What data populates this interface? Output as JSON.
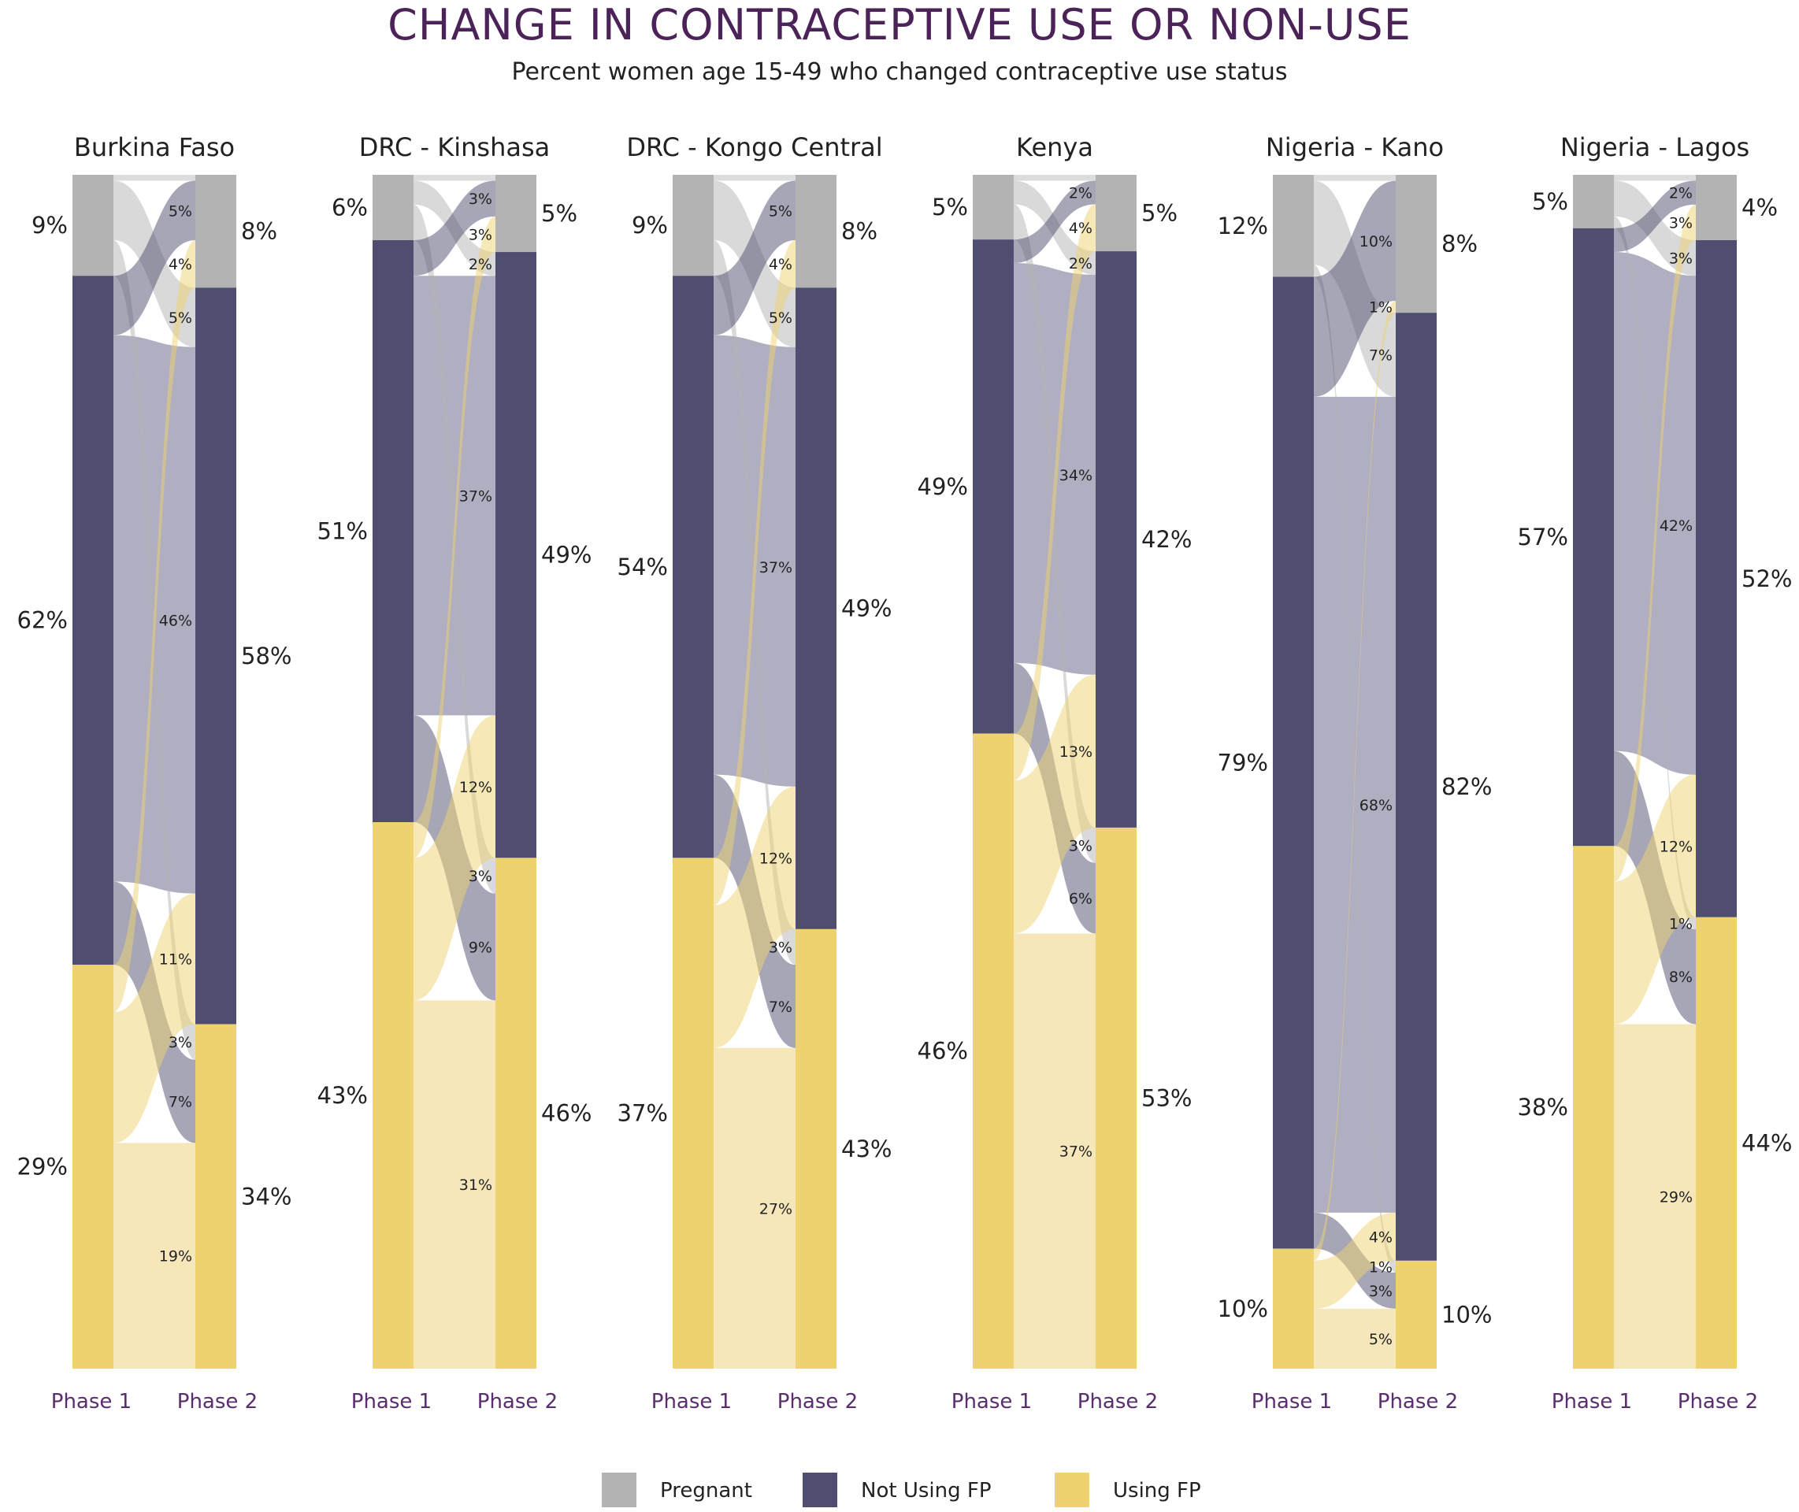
{
  "title": "CHANGE IN CONTRACEPTIVE USE OR NON-USE",
  "subtitle": "Percent women age 15-49 who changed contraceptive use status",
  "colors": {
    "pregnant": "#b3b3b3",
    "not_using": "#4f4e70",
    "using": "#edd26f"
  },
  "legend": [
    {
      "key": "pregnant",
      "label": "Pregnant"
    },
    {
      "key": "not_using",
      "label": "Not Using FP"
    },
    {
      "key": "using",
      "label": "Using FP"
    }
  ],
  "axis_labels": [
    "Phase 1",
    "Phase 2"
  ],
  "chart_data": {
    "type": "alluvial",
    "categories": [
      "Pregnant",
      "Not Using FP",
      "Using FP"
    ],
    "panels": [
      {
        "name": "Burkina Faso",
        "phase1": {
          "pregnant": "9%",
          "not_using": "62%",
          "using": "29%"
        },
        "phase2": {
          "pregnant": "8%",
          "not_using": "58%",
          "using": "34%"
        },
        "flows": [
          {
            "from": "pregnant",
            "to": "pregnant",
            "value": 0.5,
            "label": ""
          },
          {
            "from": "pregnant",
            "to": "not_using",
            "value": 5,
            "label": "5%"
          },
          {
            "from": "pregnant",
            "to": "using",
            "value": 3,
            "label": "3%"
          },
          {
            "from": "not_using",
            "to": "pregnant",
            "value": 5,
            "label": "5%"
          },
          {
            "from": "not_using",
            "to": "not_using",
            "value": 46,
            "label": "46%"
          },
          {
            "from": "not_using",
            "to": "using",
            "value": 7,
            "label": "7%"
          },
          {
            "from": "using",
            "to": "pregnant",
            "value": 4,
            "label": "4%"
          },
          {
            "from": "using",
            "to": "not_using",
            "value": 11,
            "label": "11%"
          },
          {
            "from": "using",
            "to": "using",
            "value": 19,
            "label": "19%"
          }
        ]
      },
      {
        "name": "DRC - Kinshasa",
        "phase1": {
          "pregnant": "6%",
          "not_using": "51%",
          "using": "43%"
        },
        "phase2": {
          "pregnant": "5%",
          "not_using": "49%",
          "using": "46%"
        },
        "flows": [
          {
            "from": "pregnant",
            "to": "pregnant",
            "value": 0.5,
            "label": ""
          },
          {
            "from": "pregnant",
            "to": "not_using",
            "value": 2,
            "label": "2%"
          },
          {
            "from": "pregnant",
            "to": "using",
            "value": 3,
            "label": "3%"
          },
          {
            "from": "not_using",
            "to": "pregnant",
            "value": 3,
            "label": "3%"
          },
          {
            "from": "not_using",
            "to": "not_using",
            "value": 37,
            "label": "37%"
          },
          {
            "from": "not_using",
            "to": "using",
            "value": 9,
            "label": "9%"
          },
          {
            "from": "using",
            "to": "pregnant",
            "value": 3,
            "label": "3%"
          },
          {
            "from": "using",
            "to": "not_using",
            "value": 12,
            "label": "12%"
          },
          {
            "from": "using",
            "to": "using",
            "value": 31,
            "label": "31%"
          }
        ]
      },
      {
        "name": "DRC - Kongo Central",
        "phase1": {
          "pregnant": "9%",
          "not_using": "54%",
          "using": "37%"
        },
        "phase2": {
          "pregnant": "8%",
          "not_using": "49%",
          "using": "43%"
        },
        "flows": [
          {
            "from": "pregnant",
            "to": "pregnant",
            "value": 0.5,
            "label": ""
          },
          {
            "from": "pregnant",
            "to": "not_using",
            "value": 5,
            "label": "5%"
          },
          {
            "from": "pregnant",
            "to": "using",
            "value": 3,
            "label": "3%"
          },
          {
            "from": "not_using",
            "to": "pregnant",
            "value": 5,
            "label": "5%"
          },
          {
            "from": "not_using",
            "to": "not_using",
            "value": 37,
            "label": "37%"
          },
          {
            "from": "not_using",
            "to": "using",
            "value": 7,
            "label": "7%"
          },
          {
            "from": "using",
            "to": "pregnant",
            "value": 4,
            "label": "4%"
          },
          {
            "from": "using",
            "to": "not_using",
            "value": 12,
            "label": "12%"
          },
          {
            "from": "using",
            "to": "using",
            "value": 27,
            "label": "27%"
          }
        ]
      },
      {
        "name": "Kenya",
        "phase1": {
          "pregnant": "5%",
          "not_using": "49%",
          "using": "46%"
        },
        "phase2": {
          "pregnant": "5%",
          "not_using": "42%",
          "using": "53%"
        },
        "flows": [
          {
            "from": "pregnant",
            "to": "pregnant",
            "value": 0.5,
            "label": ""
          },
          {
            "from": "pregnant",
            "to": "not_using",
            "value": 2,
            "label": "2%"
          },
          {
            "from": "pregnant",
            "to": "using",
            "value": 3,
            "label": "3%"
          },
          {
            "from": "not_using",
            "to": "pregnant",
            "value": 2,
            "label": "2%"
          },
          {
            "from": "not_using",
            "to": "not_using",
            "value": 34,
            "label": "34%"
          },
          {
            "from": "not_using",
            "to": "using",
            "value": 6,
            "label": "6%"
          },
          {
            "from": "using",
            "to": "pregnant",
            "value": 4,
            "label": "4%"
          },
          {
            "from": "using",
            "to": "not_using",
            "value": 13,
            "label": "13%"
          },
          {
            "from": "using",
            "to": "using",
            "value": 37,
            "label": "37%"
          }
        ]
      },
      {
        "name": "Nigeria - Kano",
        "phase1": {
          "pregnant": "12%",
          "not_using": "79%",
          "using": "10%"
        },
        "phase2": {
          "pregnant": "8%",
          "not_using": "82%",
          "using": "10%"
        },
        "flows": [
          {
            "from": "pregnant",
            "to": "pregnant",
            "value": 0.5,
            "label": ""
          },
          {
            "from": "pregnant",
            "to": "not_using",
            "value": 7,
            "label": "7%"
          },
          {
            "from": "pregnant",
            "to": "using",
            "value": 1,
            "label": "1%"
          },
          {
            "from": "not_using",
            "to": "pregnant",
            "value": 10,
            "label": "10%"
          },
          {
            "from": "not_using",
            "to": "not_using",
            "value": 68,
            "label": "68%"
          },
          {
            "from": "not_using",
            "to": "using",
            "value": 3,
            "label": "3%"
          },
          {
            "from": "using",
            "to": "pregnant",
            "value": 1,
            "label": "1%"
          },
          {
            "from": "using",
            "to": "not_using",
            "value": 4,
            "label": "4%"
          },
          {
            "from": "using",
            "to": "using",
            "value": 5,
            "label": "5%"
          }
        ]
      },
      {
        "name": "Nigeria - Lagos",
        "phase1": {
          "pregnant": "5%",
          "not_using": "57%",
          "using": "38%"
        },
        "phase2": {
          "pregnant": "4%",
          "not_using": "52%",
          "using": "44%"
        },
        "flows": [
          {
            "from": "pregnant",
            "to": "pregnant",
            "value": 0.5,
            "label": ""
          },
          {
            "from": "pregnant",
            "to": "not_using",
            "value": 3,
            "label": "3%"
          },
          {
            "from": "pregnant",
            "to": "using",
            "value": 1,
            "label": "1%"
          },
          {
            "from": "not_using",
            "to": "pregnant",
            "value": 2,
            "label": "2%"
          },
          {
            "from": "not_using",
            "to": "not_using",
            "value": 42,
            "label": "42%"
          },
          {
            "from": "not_using",
            "to": "using",
            "value": 8,
            "label": "8%"
          },
          {
            "from": "using",
            "to": "pregnant",
            "value": 3,
            "label": "3%"
          },
          {
            "from": "using",
            "to": "not_using",
            "value": 12,
            "label": "12%"
          },
          {
            "from": "using",
            "to": "using",
            "value": 29,
            "label": "29%"
          }
        ]
      }
    ]
  }
}
